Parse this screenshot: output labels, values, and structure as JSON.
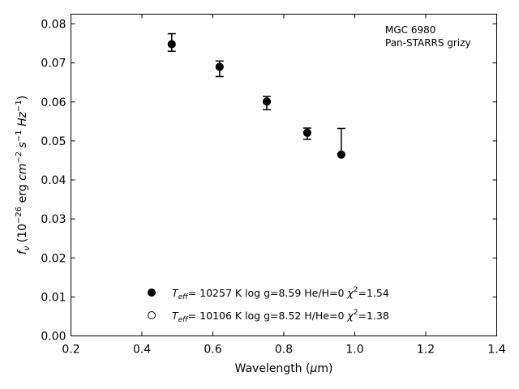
{
  "chart_data": {
    "type": "scatter",
    "title": "",
    "xlabel": "Wavelength (μm)",
    "ylabel": "fν (10⁻²⁶ erg cm⁻² s⁻¹ Hz⁻¹)",
    "xlim": [
      0.2,
      1.4
    ],
    "ylim": [
      0.0,
      0.0825
    ],
    "xticks": [
      0.2,
      0.4,
      0.6,
      0.8,
      1.0,
      1.2,
      1.4
    ],
    "xtick_labels": [
      "0.2",
      "0.4",
      "0.6",
      "0.8",
      "1.0",
      "1.2",
      "1.4"
    ],
    "yticks": [
      0.0,
      0.01,
      0.02,
      0.03,
      0.04,
      0.05,
      0.06,
      0.07,
      0.08
    ],
    "ytick_labels": [
      "0.00",
      "0.01",
      "0.02",
      "0.03",
      "0.04",
      "0.05",
      "0.06",
      "0.07",
      "0.08"
    ],
    "grid": false,
    "legend_position": "bottom-center",
    "annotation": [
      "MGC 6980",
      "Pan-STARRS grizy"
    ],
    "observed": {
      "marker": "filled-circle",
      "color": "#000000",
      "points": [
        {
          "x": 0.484,
          "y": 0.0748,
          "err_low": 0.0018,
          "err_high": 0.0027
        },
        {
          "x": 0.619,
          "y": 0.069,
          "err_low": 0.0025,
          "err_high": 0.0015
        },
        {
          "x": 0.752,
          "y": 0.0601,
          "err_low": 0.0021,
          "err_high": 0.0013
        },
        {
          "x": 0.866,
          "y": 0.0521,
          "err_low": 0.0017,
          "err_high": 0.0012
        },
        {
          "x": 0.962,
          "y": 0.0465,
          "err_low": 0.0,
          "err_high": 0.0067
        }
      ]
    },
    "model_1": {
      "marker": "filled-circle",
      "color": "#000000",
      "points": [
        {
          "x": 0.484,
          "y": 0.0748
        },
        {
          "x": 0.619,
          "y": 0.069
        },
        {
          "x": 0.752,
          "y": 0.0601
        },
        {
          "x": 0.866,
          "y": 0.0521
        },
        {
          "x": 0.962,
          "y": 0.0465
        }
      ]
    },
    "model_2": {
      "marker": "open-circle",
      "color": "#000000",
      "points": [
        {
          "x": 0.484,
          "y": 0.0748
        },
        {
          "x": 0.619,
          "y": 0.069
        },
        {
          "x": 0.752,
          "y": 0.0601
        },
        {
          "x": 0.866,
          "y": 0.0521
        },
        {
          "x": 0.962,
          "y": 0.0465
        }
      ]
    },
    "legend": [
      {
        "marker": "filled-circle",
        "teff": "10257",
        "logg": "8.59",
        "comp": "He/H=0",
        "chi2": "1.54"
      },
      {
        "marker": "open-circle",
        "teff": "10106",
        "logg": "8.52",
        "comp": "H/He=0",
        "chi2": "1.38"
      }
    ]
  }
}
